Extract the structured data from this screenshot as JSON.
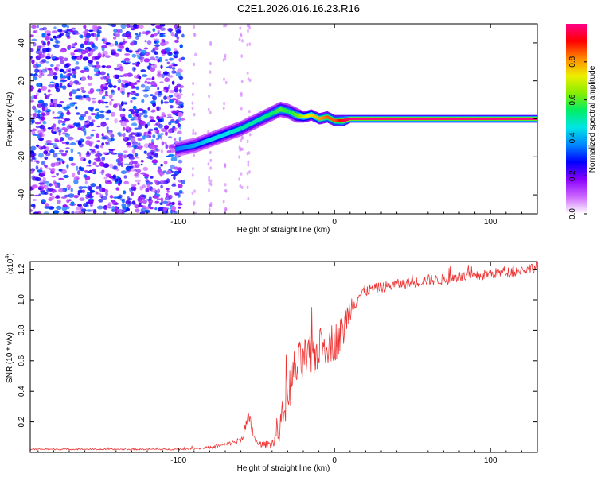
{
  "figure_title": "C2E1.2026.016.16.23.R16",
  "chart_data": [
    {
      "type": "heatmap",
      "title": "C2E1.2026.016.16.23.R16",
      "xlabel": "Height of straight line (km)",
      "ylabel": "Frequency (Hz)",
      "xlim": [
        -195,
        130
      ],
      "ylim": [
        -50,
        50
      ],
      "xticks": [
        -100,
        0,
        100
      ],
      "yticks": [
        -40,
        -20,
        0,
        20,
        40
      ],
      "colorbar": {
        "label": "Normalized spectral amplitude",
        "range": [
          0,
          1
        ],
        "ticks": [
          0.0,
          0.2,
          0.4,
          0.6,
          0.8
        ],
        "colors": [
          "#ffffff",
          "#cc66ff",
          "#8800ff",
          "#0000ff",
          "#0088ff",
          "#00e5e5",
          "#00ee66",
          "#88ee00",
          "#eeee00",
          "#ff8800",
          "#ff0000",
          "#ff0088"
        ]
      },
      "ridge": {
        "x": [
          -102,
          -90,
          -80,
          -70,
          -60,
          -50,
          -40,
          -35,
          -30,
          -25,
          -20,
          -15,
          -10,
          -5,
          0,
          5,
          10,
          130
        ],
        "y": [
          -16,
          -14,
          -11,
          -8,
          -5,
          -1,
          3,
          5,
          4,
          2,
          1,
          2,
          0,
          1,
          -1,
          -1,
          0,
          0
        ],
        "width_hz": [
          4,
          4,
          4,
          4,
          4,
          4,
          4,
          4,
          4,
          4,
          3,
          3,
          3,
          3,
          3,
          3,
          2,
          2
        ],
        "amplitude": [
          0.35,
          0.4,
          0.45,
          0.45,
          0.5,
          0.5,
          0.55,
          0.6,
          0.55,
          0.6,
          0.7,
          0.75,
          0.8,
          0.85,
          0.85,
          0.95,
          1.0,
          1.0
        ]
      },
      "noise_region": {
        "x_from": -195,
        "x_to": -100,
        "amplitude": "0.15-0.35"
      }
    },
    {
      "type": "line",
      "xlabel": "Height of straight line (km)",
      "ylabel": "SNR (10 * v/v)",
      "exponent_label": "(x10",
      "exponent_power": "4",
      "exponent_close": ")",
      "xlim": [
        -195,
        130
      ],
      "ylim": [
        0,
        1.25
      ],
      "xticks": [
        -100,
        0,
        100
      ],
      "yticks": [
        0.2,
        0.4,
        0.6,
        0.8,
        1.0,
        1.2
      ],
      "ytick_labels": [
        "0.2",
        "0.4",
        "0.6",
        "0.8",
        "1.0",
        "1.2"
      ],
      "color": "#ee3333",
      "series": {
        "name": "SNR",
        "x": [
          -195,
          -150,
          -100,
          -80,
          -70,
          -60,
          -55,
          -50,
          -45,
          -40,
          -35,
          -30,
          -25,
          -20,
          -15,
          -10,
          -5,
          0,
          5,
          10,
          15,
          20,
          30,
          40,
          50,
          60,
          70,
          80,
          90,
          100,
          110,
          120,
          130
        ],
        "y": [
          0.02,
          0.02,
          0.02,
          0.03,
          0.05,
          0.08,
          0.22,
          0.06,
          0.05,
          0.06,
          0.15,
          0.38,
          0.55,
          0.6,
          0.62,
          0.67,
          0.72,
          0.72,
          0.78,
          0.95,
          1.02,
          1.06,
          1.08,
          1.1,
          1.11,
          1.13,
          1.13,
          1.15,
          1.15,
          1.17,
          1.18,
          1.19,
          1.22
        ],
        "noise": [
          0.004,
          0.004,
          0.005,
          0.008,
          0.012,
          0.02,
          0.06,
          0.02,
          0.02,
          0.03,
          0.08,
          0.14,
          0.16,
          0.15,
          0.14,
          0.14,
          0.14,
          0.13,
          0.12,
          0.09,
          0.05,
          0.04,
          0.035,
          0.035,
          0.035,
          0.035,
          0.035,
          0.035,
          0.035,
          0.035,
          0.035,
          0.035,
          0.035
        ]
      }
    }
  ]
}
